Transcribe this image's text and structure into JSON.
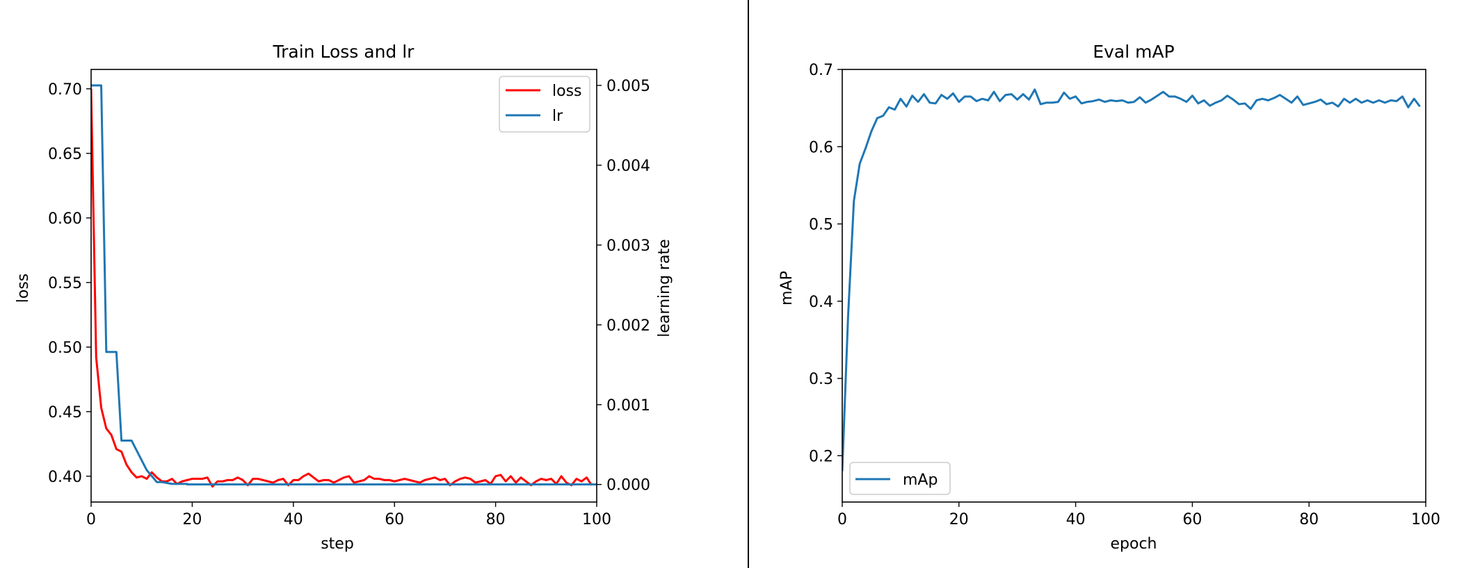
{
  "chart_data": [
    {
      "type": "line",
      "title": "Train Loss and lr",
      "xlabel": "step",
      "ylabel": "loss",
      "ylabel_right": "learning rate",
      "xlim": [
        0,
        100
      ],
      "ylim": [
        0.38,
        0.715
      ],
      "ylim_right": [
        -0.00022,
        0.0052
      ],
      "xticks": [
        "0",
        "20",
        "40",
        "60",
        "80",
        "100"
      ],
      "yticks": [
        "0.40",
        "0.45",
        "0.50",
        "0.55",
        "0.60",
        "0.65",
        "0.70"
      ],
      "yticks_right": [
        "0.000",
        "0.001",
        "0.002",
        "0.003",
        "0.004",
        "0.005"
      ],
      "legend_position": "top-right",
      "grid": false,
      "series": [
        {
          "name": "loss",
          "axis": "left",
          "color": "#ff0000",
          "x": [
            0,
            1,
            2,
            3,
            4,
            5,
            6,
            7,
            8,
            9,
            10,
            11,
            12,
            13,
            14,
            15,
            16,
            17,
            18,
            19,
            20,
            21,
            22,
            23,
            24,
            25,
            26,
            27,
            28,
            29,
            30,
            31,
            32,
            33,
            34,
            35,
            36,
            37,
            38,
            39,
            40,
            41,
            42,
            43,
            44,
            45,
            46,
            47,
            48,
            49,
            50,
            51,
            52,
            53,
            54,
            55,
            56,
            57,
            58,
            59,
            60,
            61,
            62,
            63,
            64,
            65,
            66,
            67,
            68,
            69,
            70,
            71,
            72,
            73,
            74,
            75,
            76,
            77,
            78,
            79,
            80,
            81,
            82,
            83,
            84,
            85,
            86,
            87,
            88,
            89,
            90,
            91,
            92,
            93,
            94,
            95,
            96,
            97,
            98,
            99
          ],
          "values": [
            0.7,
            0.492,
            0.453,
            0.437,
            0.432,
            0.421,
            0.419,
            0.409,
            0.403,
            0.399,
            0.4,
            0.398,
            0.403,
            0.399,
            0.396,
            0.396,
            0.398,
            0.394,
            0.396,
            0.397,
            0.398,
            0.398,
            0.398,
            0.399,
            0.392,
            0.396,
            0.396,
            0.397,
            0.397,
            0.399,
            0.397,
            0.393,
            0.398,
            0.398,
            0.397,
            0.396,
            0.395,
            0.397,
            0.398,
            0.393,
            0.397,
            0.397,
            0.4,
            0.402,
            0.399,
            0.396,
            0.397,
            0.397,
            0.395,
            0.397,
            0.399,
            0.4,
            0.395,
            0.396,
            0.397,
            0.4,
            0.398,
            0.398,
            0.397,
            0.397,
            0.396,
            0.397,
            0.398,
            0.397,
            0.396,
            0.395,
            0.397,
            0.398,
            0.399,
            0.397,
            0.398,
            0.393,
            0.396,
            0.398,
            0.399,
            0.398,
            0.395,
            0.396,
            0.397,
            0.394,
            0.4,
            0.401,
            0.396,
            0.4,
            0.395,
            0.399,
            0.396,
            0.393,
            0.396,
            0.398,
            0.397,
            0.398,
            0.394,
            0.4,
            0.395,
            0.393,
            0.398,
            0.396,
            0.399,
            0.393
          ]
        },
        {
          "name": "lr",
          "axis": "right",
          "color": "#1f77b4",
          "x": [
            0,
            2,
            2,
            3,
            3,
            5,
            5,
            6,
            6,
            8,
            8,
            11,
            11,
            13,
            13,
            14,
            14,
            16,
            16,
            19,
            19,
            100
          ],
          "values": [
            0.005,
            0.005,
            0.005,
            0.00166,
            0.00166,
            0.00166,
            0.00166,
            0.00055,
            0.00055,
            0.00055,
            0.00055,
            0.00018,
            0.00018,
            3e-05,
            3e-05,
            3e-05,
            3e-05,
            7e-06,
            7e-06,
            7e-06,
            1e-06,
            1e-06
          ]
        }
      ]
    },
    {
      "type": "line",
      "title": "Eval mAP",
      "xlabel": "epoch",
      "ylabel": "mAP",
      "xlim": [
        0,
        100
      ],
      "ylim": [
        0.14,
        0.7
      ],
      "xticks": [
        "0",
        "20",
        "40",
        "60",
        "80",
        "100"
      ],
      "yticks": [
        "0.2",
        "0.3",
        "0.4",
        "0.5",
        "0.6",
        "0.7"
      ],
      "legend_position": "bottom-left",
      "grid": false,
      "series": [
        {
          "name": "mAp",
          "color": "#1f77b4",
          "x": [
            0,
            1,
            2,
            3,
            4,
            5,
            6,
            7,
            8,
            9,
            10,
            11,
            12,
            13,
            14,
            15,
            16,
            17,
            18,
            19,
            20,
            21,
            22,
            23,
            24,
            25,
            26,
            27,
            28,
            29,
            30,
            31,
            32,
            33,
            34,
            35,
            36,
            37,
            38,
            39,
            40,
            41,
            42,
            43,
            44,
            45,
            46,
            47,
            48,
            49,
            50,
            51,
            52,
            53,
            54,
            55,
            56,
            57,
            58,
            59,
            60,
            61,
            62,
            63,
            64,
            65,
            66,
            67,
            68,
            69,
            70,
            71,
            72,
            73,
            74,
            75,
            76,
            77,
            78,
            79,
            80,
            81,
            82,
            83,
            84,
            85,
            86,
            87,
            88,
            89,
            90,
            91,
            92,
            93,
            94,
            95,
            96,
            97,
            98,
            99
          ],
          "values": [
            0.18,
            0.38,
            0.53,
            0.578,
            0.598,
            0.62,
            0.637,
            0.64,
            0.651,
            0.648,
            0.662,
            0.652,
            0.666,
            0.658,
            0.668,
            0.657,
            0.656,
            0.667,
            0.662,
            0.669,
            0.658,
            0.665,
            0.665,
            0.659,
            0.662,
            0.66,
            0.671,
            0.659,
            0.667,
            0.668,
            0.661,
            0.668,
            0.661,
            0.674,
            0.655,
            0.657,
            0.657,
            0.658,
            0.67,
            0.662,
            0.665,
            0.656,
            0.658,
            0.659,
            0.661,
            0.658,
            0.66,
            0.659,
            0.66,
            0.657,
            0.658,
            0.664,
            0.657,
            0.661,
            0.666,
            0.671,
            0.665,
            0.665,
            0.662,
            0.658,
            0.666,
            0.656,
            0.66,
            0.653,
            0.657,
            0.66,
            0.666,
            0.661,
            0.655,
            0.656,
            0.649,
            0.66,
            0.662,
            0.66,
            0.663,
            0.667,
            0.662,
            0.657,
            0.665,
            0.654,
            0.656,
            0.658,
            0.661,
            0.655,
            0.657,
            0.652,
            0.662,
            0.657,
            0.662,
            0.657,
            0.66,
            0.657,
            0.66,
            0.657,
            0.66,
            0.659,
            0.665,
            0.651,
            0.662,
            0.652
          ]
        }
      ]
    }
  ]
}
